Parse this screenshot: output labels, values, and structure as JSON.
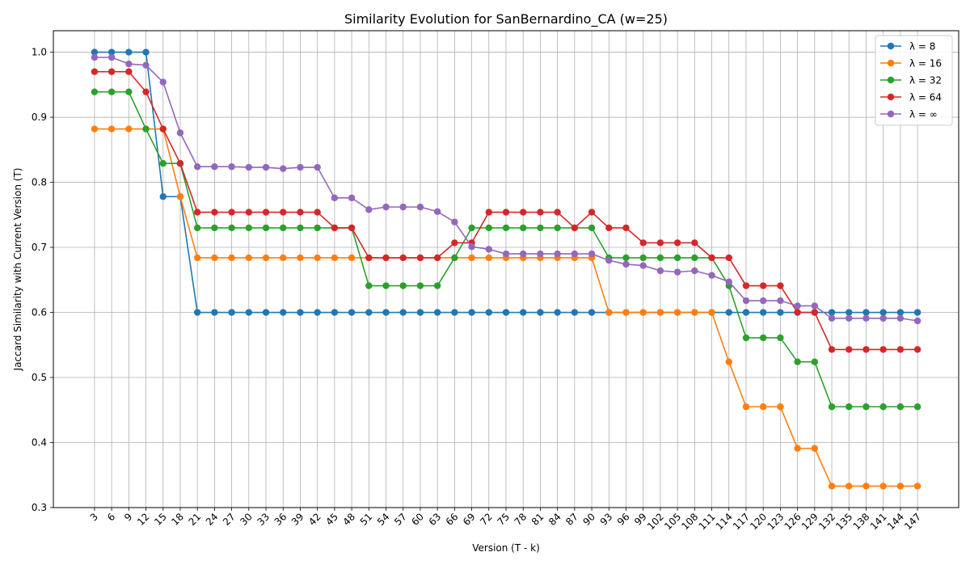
{
  "chart_data": {
    "type": "line",
    "title": "Similarity Evolution for SanBernardino_CA (w=25)",
    "xlabel": "Version (T - k)",
    "ylabel": "Jaccard Similarity with Current Version (T)",
    "ylim": [
      0.3,
      1.033
    ],
    "yticks": [
      0.3,
      0.4,
      0.5,
      0.6,
      0.7,
      0.8,
      0.9,
      1.0
    ],
    "ytick_labels": [
      "0.3",
      "0.4",
      "0.5",
      "0.6",
      "0.7",
      "0.8",
      "0.9",
      "1.0"
    ],
    "grid": true,
    "legend_position": "top-right",
    "x": [
      3,
      6,
      9,
      12,
      15,
      18,
      21,
      24,
      27,
      30,
      33,
      36,
      39,
      42,
      45,
      48,
      51,
      54,
      57,
      60,
      63,
      66,
      69,
      72,
      75,
      78,
      81,
      84,
      87,
      90,
      93,
      96,
      99,
      102,
      105,
      108,
      111,
      114,
      117,
      120,
      123,
      126,
      129,
      132,
      135,
      138,
      141,
      144,
      147
    ],
    "series": [
      {
        "name": "λ = 8",
        "color": "#1f77b4",
        "values": [
          1.0,
          1.0,
          1.0,
          1.0,
          0.778,
          0.778,
          0.6,
          0.6,
          0.6,
          0.6,
          0.6,
          0.6,
          0.6,
          0.6,
          0.6,
          0.6,
          0.6,
          0.6,
          0.6,
          0.6,
          0.6,
          0.6,
          0.6,
          0.6,
          0.6,
          0.6,
          0.6,
          0.6,
          0.6,
          0.6,
          0.6,
          0.6,
          0.6,
          0.6,
          0.6,
          0.6,
          0.6,
          0.6,
          0.6,
          0.6,
          0.6,
          0.6,
          0.6,
          0.6,
          0.6,
          0.6,
          0.6,
          0.6,
          0.6
        ]
      },
      {
        "name": "λ = 16",
        "color": "#ff7f0e",
        "values": [
          0.882,
          0.882,
          0.882,
          0.882,
          0.882,
          0.778,
          0.684,
          0.684,
          0.684,
          0.684,
          0.684,
          0.684,
          0.684,
          0.684,
          0.684,
          0.684,
          0.684,
          0.684,
          0.684,
          0.684,
          0.684,
          0.684,
          0.684,
          0.684,
          0.684,
          0.684,
          0.684,
          0.684,
          0.684,
          0.684,
          0.6,
          0.6,
          0.6,
          0.6,
          0.6,
          0.6,
          0.6,
          0.524,
          0.455,
          0.455,
          0.455,
          0.391,
          0.391,
          0.333,
          0.333,
          0.333,
          0.333,
          0.333,
          0.333
        ]
      },
      {
        "name": "λ = 32",
        "color": "#2ca02c",
        "values": [
          0.939,
          0.939,
          0.939,
          0.882,
          0.829,
          0.829,
          0.73,
          0.73,
          0.73,
          0.73,
          0.73,
          0.73,
          0.73,
          0.73,
          0.73,
          0.73,
          0.641,
          0.641,
          0.641,
          0.641,
          0.641,
          0.684,
          0.73,
          0.73,
          0.73,
          0.73,
          0.73,
          0.73,
          0.73,
          0.73,
          0.684,
          0.684,
          0.684,
          0.684,
          0.684,
          0.684,
          0.684,
          0.641,
          0.561,
          0.561,
          0.561,
          0.524,
          0.524,
          0.455,
          0.455,
          0.455,
          0.455,
          0.455,
          0.455
        ]
      },
      {
        "name": "λ = 64",
        "color": "#d62728",
        "values": [
          0.97,
          0.97,
          0.97,
          0.939,
          0.882,
          0.829,
          0.754,
          0.754,
          0.754,
          0.754,
          0.754,
          0.754,
          0.754,
          0.754,
          0.73,
          0.73,
          0.684,
          0.684,
          0.684,
          0.684,
          0.684,
          0.707,
          0.707,
          0.754,
          0.754,
          0.754,
          0.754,
          0.754,
          0.73,
          0.754,
          0.73,
          0.73,
          0.707,
          0.707,
          0.707,
          0.707,
          0.684,
          0.684,
          0.641,
          0.641,
          0.641,
          0.6,
          0.6,
          0.543,
          0.543,
          0.543,
          0.543,
          0.543,
          0.543
        ]
      },
      {
        "name": "λ = ∞",
        "color": "#9467bd",
        "values": [
          0.992,
          0.992,
          0.982,
          0.98,
          0.954,
          0.876,
          0.824,
          0.824,
          0.824,
          0.823,
          0.823,
          0.821,
          0.823,
          0.823,
          0.776,
          0.776,
          0.758,
          0.762,
          0.762,
          0.762,
          0.755,
          0.739,
          0.701,
          0.697,
          0.69,
          0.69,
          0.69,
          0.69,
          0.69,
          0.69,
          0.68,
          0.674,
          0.672,
          0.664,
          0.662,
          0.664,
          0.657,
          0.647,
          0.618,
          0.618,
          0.618,
          0.61,
          0.61,
          0.591,
          0.591,
          0.591,
          0.591,
          0.591,
          0.587
        ]
      }
    ]
  }
}
